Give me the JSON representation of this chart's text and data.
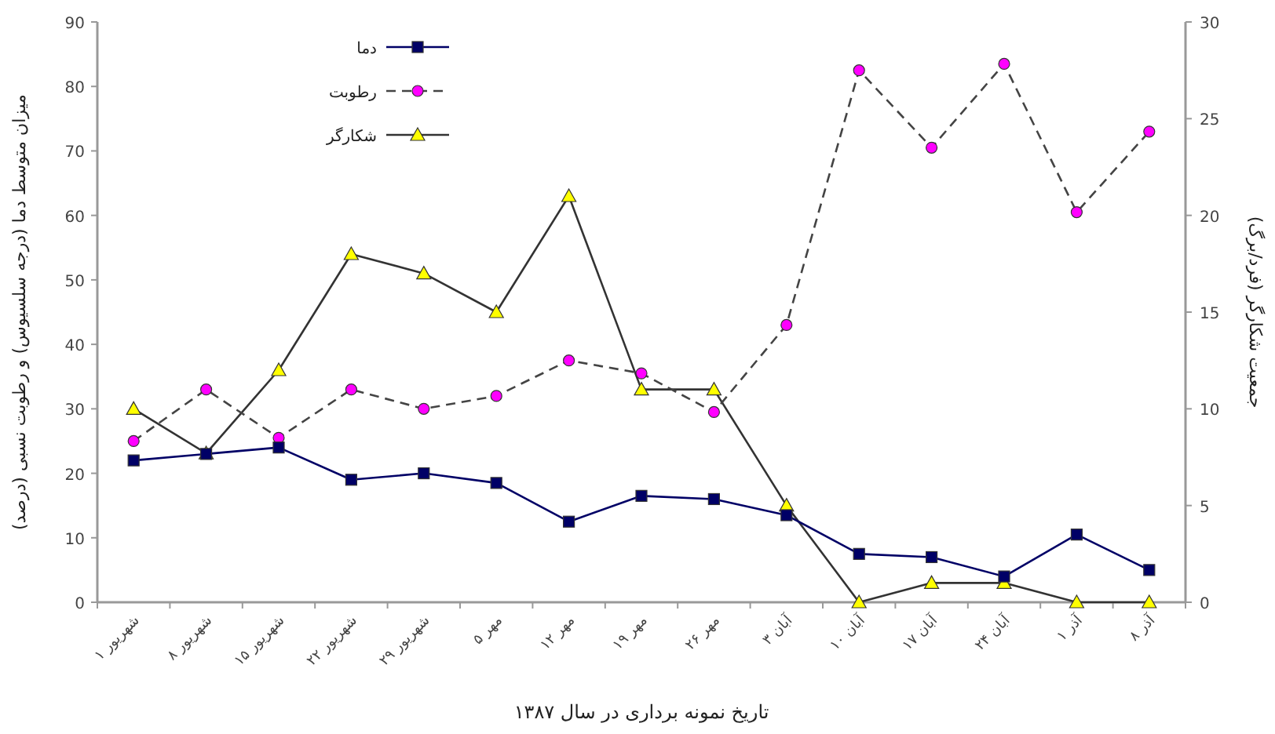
{
  "chart_data": {
    "type": "line",
    "xlabel": "تاریخ نمونه برداری در سال ۱۳۸۷",
    "ylabel": "میزان متوسط دما (درجه سلسیوس) و رطوبت نسبی (درصد)",
    "y2label": "جمعیت شکارگر (فرد/برگ)",
    "categories": [
      "۱ شهریور",
      "۸ شهریور",
      "۱۵ شهریور",
      "۲۲ شهریور",
      "۲۹ شهریور",
      "۵ مهر",
      "۱۲ مهر",
      "۱۹ مهر",
      "۲۶ مهر",
      "۳ آبان",
      "۱۰ آبان",
      "۱۷ آبان",
      "۲۴ آبان",
      "۱ آذر",
      "۸ آذر"
    ],
    "series": [
      {
        "name": "دما",
        "color": "#000066",
        "marker": "square",
        "line_style": "solid",
        "values": [
          22,
          23,
          24,
          19,
          20,
          18.5,
          12.5,
          16.5,
          16,
          13.5,
          7.5,
          7,
          4,
          10.5,
          5
        ]
      },
      {
        "name": "رطوبت",
        "color": "#ff00ff",
        "marker": "circle",
        "line_style": "dashed",
        "values": [
          25,
          33,
          25.5,
          33,
          30,
          32,
          37.5,
          35.5,
          29.5,
          43,
          82.5,
          70.5,
          83.5,
          60.5,
          73
        ]
      },
      {
        "name": "شکارگر",
        "color": "#ffff00",
        "marker": "triangle",
        "line_style": "solid",
        "axis": "y2",
        "values": [
          10,
          7.7,
          12,
          18,
          17,
          15,
          21,
          11,
          11,
          5,
          0,
          1,
          1,
          0,
          0
        ]
      }
    ],
    "ylim": [
      0,
      90
    ],
    "yticks": [
      0,
      10,
      20,
      30,
      40,
      50,
      60,
      70,
      80,
      90
    ],
    "y2lim": [
      0,
      30
    ],
    "y2ticks": [
      0,
      5,
      10,
      15,
      20,
      25,
      30
    ],
    "legend": "top left",
    "grid": false
  }
}
